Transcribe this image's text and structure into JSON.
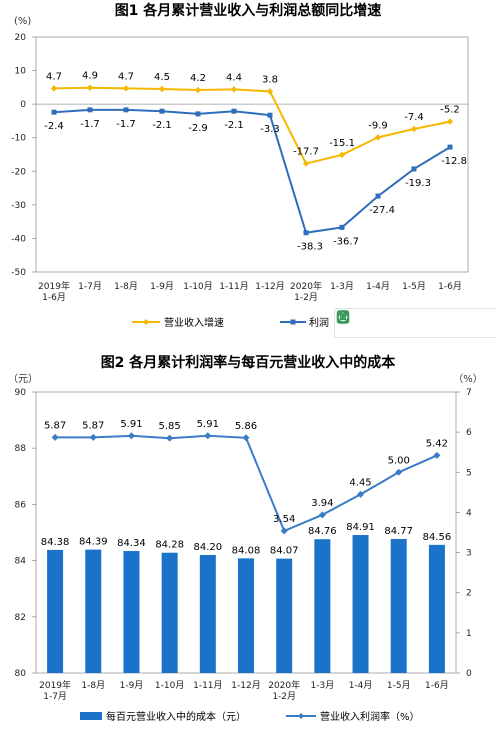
{
  "colors": {
    "growth": "#F5B800",
    "profit": "#2F6EBA",
    "bar": "#1A73C8",
    "rate": "#3A7CC6"
  },
  "toolbar": {
    "icons": [
      "crop-icon",
      "fullscreen-icon",
      "save-icon",
      "share-icon",
      "settings-icon"
    ]
  },
  "chart_data": [
    {
      "type": "line",
      "title": "图1  各月累计营业收入与利润总额同比增速",
      "yunit": "(%)",
      "ylim": [
        -50,
        20
      ],
      "yticks": [
        "20",
        "10",
        "0",
        "-10",
        "-20",
        "-30",
        "-40",
        "-50"
      ],
      "categories": [
        [
          "2019年",
          "1-6月"
        ],
        [
          "1-7月"
        ],
        [
          "1-8月"
        ],
        [
          "1-9月"
        ],
        [
          "1-10月"
        ],
        [
          "1-11月"
        ],
        [
          "1-12月"
        ],
        [
          "2020年",
          "1-2月"
        ],
        [
          "1-3月"
        ],
        [
          "1-4月"
        ],
        [
          "1-5月"
        ],
        [
          "1-6月"
        ]
      ],
      "series": [
        {
          "name": "营业收入增速",
          "values": [
            4.7,
            4.9,
            4.7,
            4.5,
            4.2,
            4.4,
            3.8,
            -17.7,
            -15.1,
            -9.9,
            -7.4,
            -5.2
          ],
          "labels": [
            "4.7",
            "4.9",
            "4.7",
            "4.5",
            "4.2",
            "4.4",
            "3.8",
            "-17.7",
            "-15.1",
            "-9.9",
            "-7.4",
            "-5.2"
          ]
        },
        {
          "name": "利润",
          "values": [
            -2.4,
            -1.7,
            -1.7,
            -2.1,
            -2.9,
            -2.1,
            -3.3,
            -38.3,
            -36.7,
            -27.4,
            -19.3,
            -12.8
          ],
          "labels": [
            "-2.4",
            "-1.7",
            "-1.7",
            "-2.1",
            "-2.9",
            "-2.1",
            "-3.3",
            "-38.3",
            "-36.7",
            "-27.4",
            "-19.3",
            "-12.8"
          ]
        }
      ]
    },
    {
      "type": "bar",
      "title": "图2  各月累计利润率与每百元营业收入中的成本",
      "yunit_left": "（元）",
      "yunit_right": "（%）",
      "ylim_left": [
        80,
        90
      ],
      "ylim_right": [
        0,
        7
      ],
      "yticks_left": [
        "90",
        "88",
        "86",
        "84",
        "82",
        "80"
      ],
      "yticks_right": [
        "7",
        "6",
        "5",
        "4",
        "3",
        "2",
        "1",
        "0"
      ],
      "categories": [
        [
          "2019年",
          "1-7月"
        ],
        [
          "1-8月"
        ],
        [
          "1-9月"
        ],
        [
          "1-10月"
        ],
        [
          "1-11月"
        ],
        [
          "1-12月"
        ],
        [
          "2020年",
          "1-2月"
        ],
        [
          "1-3月"
        ],
        [
          "1-4月"
        ],
        [
          "1-5月"
        ],
        [
          "1-6月"
        ]
      ],
      "series": [
        {
          "name": "每百元营业收入中的成本（元）",
          "kind": "bar",
          "values": [
            84.38,
            84.39,
            84.34,
            84.28,
            84.2,
            84.08,
            84.07,
            84.76,
            84.91,
            84.77,
            84.56
          ],
          "labels": [
            "84.38",
            "84.39",
            "84.34",
            "84.28",
            "84.20",
            "84.08",
            "84.07",
            "84.76",
            "84.91",
            "84.77",
            "84.56"
          ]
        },
        {
          "name": "营业收入利润率（%）",
          "kind": "line",
          "values": [
            5.87,
            5.87,
            5.91,
            5.85,
            5.91,
            5.86,
            3.54,
            3.94,
            4.45,
            5.0,
            5.42
          ],
          "labels": [
            "5.87",
            "5.87",
            "5.91",
            "5.85",
            "5.91",
            "5.86",
            "3.54",
            "3.94",
            "4.45",
            "5.00",
            "5.42"
          ]
        }
      ]
    }
  ]
}
